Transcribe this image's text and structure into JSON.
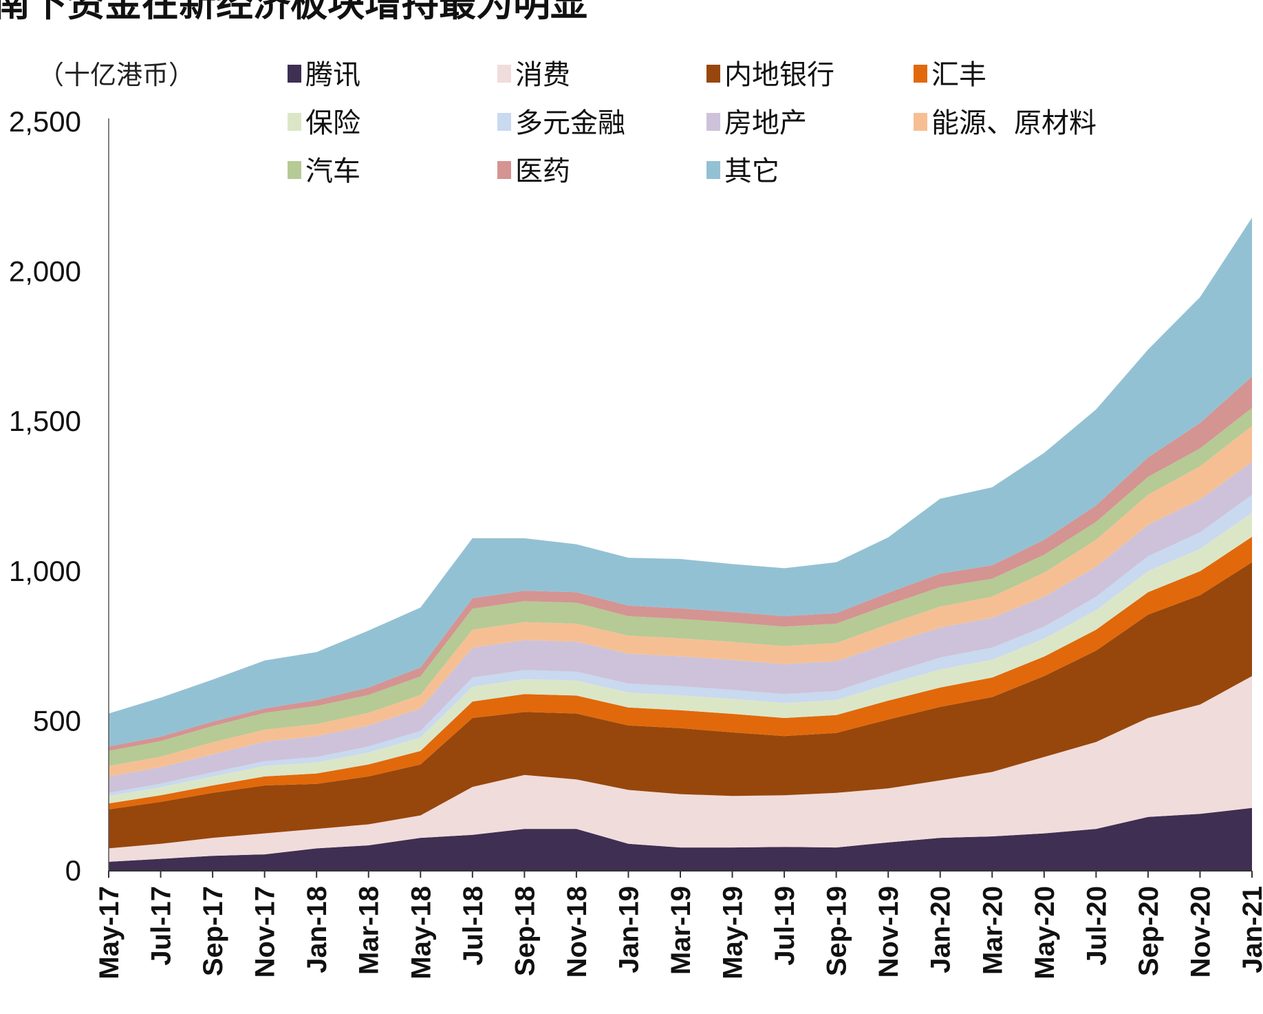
{
  "chart_data": {
    "type": "area",
    "stacked": true,
    "title": "南下资金在新经济板块增持最为明显",
    "ylabel": "（十亿港币）",
    "xlabel": "",
    "ylim": [
      0,
      2500
    ],
    "yticks": [
      0,
      500,
      1000,
      1500,
      2000,
      2500
    ],
    "ytick_labels": [
      "0",
      "500",
      "1,000",
      "1,500",
      "2,000",
      "2,500"
    ],
    "x_tick_labels": [
      "May-17",
      "Jul-17",
      "Sep-17",
      "Nov-17",
      "Jan-18",
      "Mar-18",
      "May-18",
      "Jul-18",
      "Sep-18",
      "Nov-18",
      "Jan-19",
      "Mar-19",
      "May-19",
      "Jul-19",
      "Sep-19",
      "Nov-19",
      "Jan-20",
      "Mar-20",
      "May-20",
      "Jul-20",
      "Sep-20",
      "Nov-20",
      "Jan-21"
    ],
    "legend_position": "top",
    "series": [
      {
        "name": "腾讯",
        "color": "#3f2f52",
        "values": [
          30,
          40,
          50,
          55,
          75,
          85,
          110,
          120,
          140,
          140,
          90,
          78,
          78,
          80,
          78,
          95,
          110,
          115,
          125,
          140,
          180,
          190,
          210
        ]
      },
      {
        "name": "消费",
        "color": "#f1dcdc",
        "values": [
          45,
          50,
          60,
          70,
          65,
          70,
          75,
          160,
          180,
          165,
          180,
          178,
          172,
          172,
          182,
          180,
          192,
          215,
          255,
          290,
          330,
          365,
          440
        ]
      },
      {
        "name": "内地银行",
        "color": "#97470c",
        "values": [
          130,
          140,
          150,
          160,
          150,
          160,
          170,
          230,
          210,
          220,
          215,
          220,
          212,
          198,
          200,
          230,
          245,
          250,
          270,
          305,
          345,
          365,
          380
        ]
      },
      {
        "name": "汇丰",
        "color": "#e1690b",
        "values": [
          20,
          22,
          25,
          30,
          35,
          40,
          45,
          55,
          60,
          60,
          60,
          60,
          62,
          60,
          60,
          63,
          65,
          65,
          65,
          70,
          75,
          80,
          85
        ]
      },
      {
        "name": "保险",
        "color": "#dbe6c7",
        "values": [
          25,
          27,
          30,
          35,
          37,
          40,
          45,
          50,
          50,
          50,
          50,
          50,
          50,
          50,
          50,
          55,
          60,
          60,
          60,
          65,
          70,
          75,
          80
        ]
      },
      {
        "name": "多元金融",
        "color": "#c9d9ef",
        "values": [
          10,
          12,
          14,
          16,
          18,
          20,
          22,
          30,
          30,
          30,
          30,
          30,
          30,
          30,
          30,
          35,
          40,
          40,
          40,
          45,
          50,
          55,
          60
        ]
      },
      {
        "name": "房地产",
        "color": "#cdc2d9",
        "values": [
          55,
          55,
          60,
          65,
          70,
          70,
          75,
          100,
          100,
          100,
          100,
          100,
          100,
          100,
          100,
          100,
          100,
          100,
          100,
          100,
          105,
          110,
          110
        ]
      },
      {
        "name": "能源、原材料",
        "color": "#f6bf93",
        "values": [
          35,
          35,
          40,
          40,
          40,
          42,
          45,
          60,
          60,
          60,
          60,
          60,
          60,
          60,
          60,
          65,
          70,
          70,
          80,
          90,
          100,
          110,
          120
        ]
      },
      {
        "name": "汽车",
        "color": "#b6ca95",
        "values": [
          50,
          52,
          54,
          56,
          60,
          60,
          62,
          70,
          70,
          70,
          65,
          65,
          65,
          65,
          65,
          65,
          65,
          60,
          60,
          60,
          60,
          60,
          60
        ]
      },
      {
        "name": "医药",
        "color": "#d49492",
        "values": [
          15,
          15,
          15,
          15,
          20,
          25,
          30,
          35,
          35,
          35,
          35,
          35,
          35,
          35,
          35,
          40,
          45,
          45,
          50,
          55,
          65,
          85,
          105
        ]
      },
      {
        "name": "其它",
        "color": "#93c1d4",
        "values": [
          110,
          130,
          140,
          160,
          160,
          190,
          200,
          200,
          175,
          160,
          160,
          165,
          160,
          160,
          170,
          185,
          250,
          260,
          290,
          320,
          360,
          420,
          530
        ]
      }
    ]
  }
}
